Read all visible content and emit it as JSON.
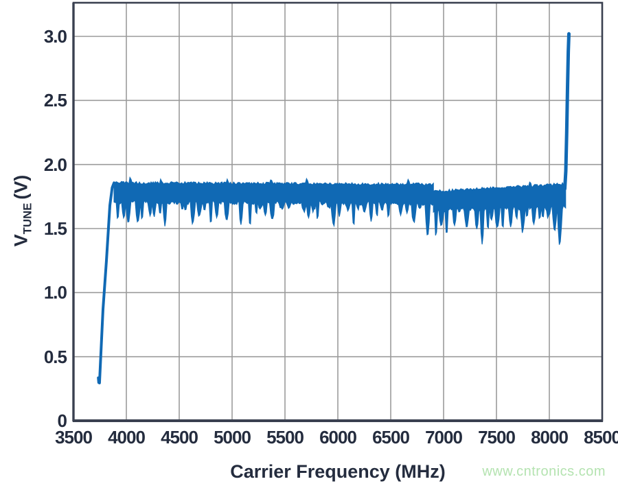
{
  "watermark": {
    "text": "www.cntronics.com",
    "color": "#b4e3b0"
  },
  "colors": {
    "background": "#ffffff",
    "curve": "#1069B4",
    "grid": "#9b9b9b",
    "frame": "#3a4050",
    "axis_text": "#242c3e"
  },
  "chart_data": {
    "type": "line",
    "title": "",
    "xlabel": "Carrier Frequency (MHz)",
    "ylabel": {
      "main": "V",
      "sub": "TUNE",
      "unit": "(V)"
    },
    "xlim": [
      3500,
      8500
    ],
    "ylim": [
      0,
      3.26
    ],
    "xtick_values": [
      3500,
      4000,
      4500,
      5000,
      5500,
      6000,
      6500,
      7000,
      7500,
      8000,
      8500
    ],
    "xtick_labels": [
      "3500",
      "4000",
      "4500",
      "5000",
      "5500",
      "6000",
      "6500",
      "7000",
      "7500",
      "8000",
      "8500"
    ],
    "ytick_values": [
      0,
      0.5,
      1,
      1.5,
      2,
      2.5,
      3
    ],
    "ytick_labels": [
      "0",
      "0.5",
      "1.0",
      "1.5",
      "2.0",
      "2.5",
      "3.0"
    ],
    "grid": true,
    "legend": false,
    "series": [
      {
        "name": "VTUNE",
        "color": "#1069B4",
        "description": "VCO tuning voltage vs carrier frequency: rails low (~0.3 V) below ~3750 MHz, steep rise to a noisy ~1.5-1.9 V lock band from ~3.88 to ~8.15 GHz (step down near 6.9 GHz), then rails up to ~3.0 V at ~8.19 GHz",
        "start_tail": [
          [
            3735,
            0.335
          ],
          [
            3739,
            0.298
          ],
          [
            3746,
            0.295
          ]
        ],
        "rise": [
          [
            3746,
            0.295
          ],
          [
            3779,
            0.87
          ],
          [
            3812,
            1.25
          ],
          [
            3844,
            1.68
          ],
          [
            3866,
            1.82
          ],
          [
            3884,
            1.857
          ]
        ],
        "noise_bands": [
          {
            "x0": 3884,
            "x1": 6904,
            "top_start": 1.858,
            "top_end": 1.846,
            "top_jitter": 0.01,
            "up_prob": 0.02,
            "up_amp": [
              0.02,
              0.05
            ],
            "bottom_start": 1.705,
            "bottom_end": 1.695,
            "bottom_jitter": 0.015,
            "spike_prob": 0.3,
            "spike_depth": [
              0.04,
              0.18
            ],
            "spike_width": [
              2,
              4
            ],
            "deep_prob": 0.02,
            "deep_depth": [
              0.2,
              0.25
            ]
          },
          {
            "x0": 6904,
            "x1": 8150,
            "top_start": 1.792,
            "top_end": 1.848,
            "top_jitter": 0.01,
            "up_prob": 0.03,
            "up_amp": [
              0.02,
              0.06
            ],
            "bottom_start": 1.638,
            "bottom_end": 1.672,
            "bottom_jitter": 0.018,
            "spike_prob": 0.32,
            "spike_depth": [
              0.05,
              0.22
            ],
            "spike_width": [
              2,
              4
            ],
            "deep_prob": 0.035,
            "deep_depth": [
              0.26,
              0.3
            ]
          }
        ],
        "end_spike": [
          [
            8146,
            1.81
          ],
          [
            8156,
            1.95
          ],
          [
            8164,
            2.25
          ],
          [
            8172,
            2.6
          ],
          [
            8179,
            2.88
          ],
          [
            8185,
            3.02
          ]
        ],
        "sample_step_mhz": 10,
        "noise_seed": 1337
      }
    ]
  }
}
